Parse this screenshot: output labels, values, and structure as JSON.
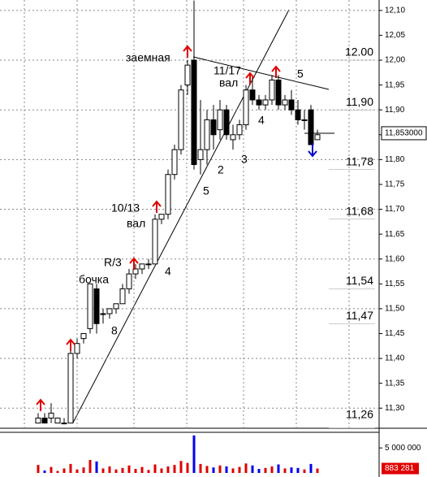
{
  "chart_data": {
    "type": "candlestick",
    "open": [
      11.27,
      11.28,
      11.28,
      11.27,
      11.27,
      11.27,
      11.41,
      11.44,
      11.46,
      11.54,
      11.49,
      11.49,
      11.5,
      11.51,
      11.54,
      11.57,
      11.58,
      11.59,
      11.59,
      11.68,
      11.69,
      11.77,
      11.82,
      11.95,
      12.0,
      11.8,
      11.82,
      11.88,
      11.86,
      11.9,
      11.84,
      11.85,
      11.87,
      11.94,
      11.92,
      11.91,
      11.92,
      11.96,
      11.91,
      11.92,
      11.9,
      11.88,
      11.9,
      11.84
    ],
    "high": [
      11.29,
      11.29,
      11.31,
      11.28,
      11.28,
      11.42,
      11.44,
      11.45,
      11.55,
      11.55,
      11.5,
      11.5,
      11.51,
      11.55,
      11.58,
      11.59,
      11.59,
      11.6,
      11.69,
      11.69,
      11.78,
      11.83,
      11.95,
      12.0,
      12.12,
      11.92,
      11.9,
      11.91,
      11.92,
      11.91,
      11.87,
      11.88,
      11.95,
      11.97,
      11.93,
      11.93,
      11.97,
      11.97,
      11.93,
      11.94,
      11.92,
      11.9,
      11.91,
      11.86
    ],
    "low": [
      11.27,
      11.27,
      11.27,
      11.27,
      11.27,
      11.27,
      11.4,
      11.43,
      11.45,
      11.45,
      11.47,
      11.48,
      11.49,
      11.51,
      11.53,
      11.56,
      11.57,
      11.58,
      11.59,
      11.67,
      11.68,
      11.76,
      11.81,
      11.93,
      11.78,
      11.77,
      11.79,
      11.82,
      11.84,
      11.84,
      11.82,
      11.84,
      11.86,
      11.91,
      11.9,
      11.9,
      11.91,
      11.9,
      11.9,
      11.89,
      11.87,
      11.86,
      11.83,
      11.84
    ],
    "close": [
      11.28,
      11.27,
      11.29,
      11.28,
      11.27,
      11.41,
      11.43,
      11.45,
      11.55,
      11.47,
      11.49,
      11.5,
      11.51,
      11.54,
      11.57,
      11.58,
      11.59,
      11.59,
      11.68,
      11.69,
      11.77,
      11.82,
      11.94,
      11.99,
      11.79,
      11.82,
      11.88,
      11.85,
      11.9,
      11.85,
      11.85,
      11.87,
      11.94,
      11.92,
      11.91,
      11.92,
      11.96,
      11.91,
      11.92,
      11.9,
      11.88,
      11.88,
      11.83,
      11.85
    ],
    "volume": [
      1600000,
      500000,
      1200000,
      400000,
      900000,
      1800000,
      700000,
      1100000,
      2600000,
      2300000,
      900000,
      1300000,
      700000,
      1000000,
      1500000,
      800000,
      1200000,
      600000,
      1700000,
      900000,
      1300000,
      1600000,
      2400000,
      2000000,
      7500000,
      1800000,
      1400000,
      1100000,
      1500000,
      1300000,
      900000,
      1200000,
      1900000,
      1500000,
      800000,
      1000000,
      1300000,
      1700000,
      900000,
      1100000,
      1000000,
      700000,
      1800000,
      883281
    ],
    "ylim": [
      11.271,
      12.121
    ],
    "yticks": [
      {
        "value": 11.3,
        "label": "11,30"
      },
      {
        "value": 11.35,
        "label": "11,35"
      },
      {
        "value": 11.4,
        "label": "11,40"
      },
      {
        "value": 11.45,
        "label": "11,45"
      },
      {
        "value": 11.5,
        "label": "11,50"
      },
      {
        "value": 11.55,
        "label": "11,55"
      },
      {
        "value": 11.6,
        "label": "11,60"
      },
      {
        "value": 11.65,
        "label": "11,65"
      },
      {
        "value": 11.7,
        "label": "11,70"
      },
      {
        "value": 11.75,
        "label": "11,75"
      },
      {
        "value": 11.8,
        "label": "11,80"
      },
      {
        "value": 11.85,
        "label": "11,85"
      },
      {
        "value": 11.9,
        "label": "11,90"
      },
      {
        "value": 11.95,
        "label": "11,95"
      },
      {
        "value": 12.0,
        "label": "12,00"
      },
      {
        "value": 12.05,
        "label": "12,05"
      },
      {
        "value": 12.1,
        "label": "12,10"
      }
    ],
    "levels": [
      {
        "value": 12.0,
        "label": "12.00"
      },
      {
        "value": 11.9,
        "label": "11,90"
      },
      {
        "value": 11.78,
        "label": "11,78"
      },
      {
        "value": 11.68,
        "label": "11,68"
      },
      {
        "value": 11.54,
        "label": "11,54"
      },
      {
        "value": 11.47,
        "label": "11,47"
      },
      {
        "value": 11.26,
        "label": "11,26"
      }
    ],
    "last_price": {
      "value": 11.853,
      "label": "11,853000"
    },
    "vlim": [
      0,
      7800000
    ],
    "vticks": [
      {
        "value": 5000000,
        "label": "5 000 000"
      }
    ],
    "last_volume": {
      "value": 883281,
      "label": "883 281"
    },
    "annotations": [
      "заемная",
      "11/17",
      "вал",
      "5",
      "4",
      "3",
      "2",
      "5",
      "10/13",
      "вал",
      "R/3",
      "4",
      "бочка",
      "8"
    ],
    "grid": true
  }
}
